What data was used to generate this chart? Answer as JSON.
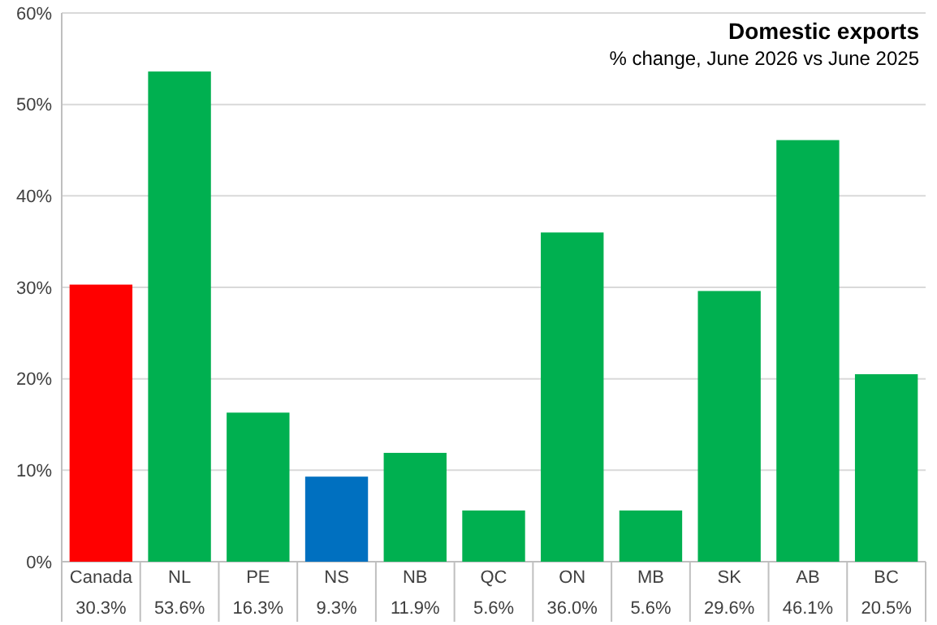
{
  "chart_data": {
    "type": "bar",
    "title": "Domestic exports",
    "subtitle": "% change, June 2026 vs June 2025",
    "categories": [
      "Canada",
      "NL",
      "PE",
      "NS",
      "NB",
      "QC",
      "ON",
      "MB",
      "SK",
      "AB",
      "BC"
    ],
    "values": [
      30.3,
      53.6,
      16.3,
      9.3,
      11.9,
      5.6,
      36.0,
      5.6,
      29.6,
      46.1,
      20.5
    ],
    "value_labels": [
      "30.3%",
      "53.6%",
      "16.3%",
      "9.3%",
      "11.9%",
      "5.6%",
      "36.0%",
      "5.6%",
      "29.6%",
      "46.1%",
      "20.5%"
    ],
    "colors": [
      "#ff0000",
      "#00b050",
      "#00b050",
      "#0070c0",
      "#00b050",
      "#00b050",
      "#00b050",
      "#00b050",
      "#00b050",
      "#00b050",
      "#00b050"
    ],
    "ylim": [
      0,
      60
    ],
    "yticks": [
      {
        "value": 0,
        "label": "0%"
      },
      {
        "value": 10,
        "label": "10%"
      },
      {
        "value": 20,
        "label": "20%"
      },
      {
        "value": 30,
        "label": "30%"
      },
      {
        "value": 40,
        "label": "40%"
      },
      {
        "value": 50,
        "label": "50%"
      },
      {
        "value": 60,
        "label": "60%"
      }
    ],
    "grid": "y"
  }
}
